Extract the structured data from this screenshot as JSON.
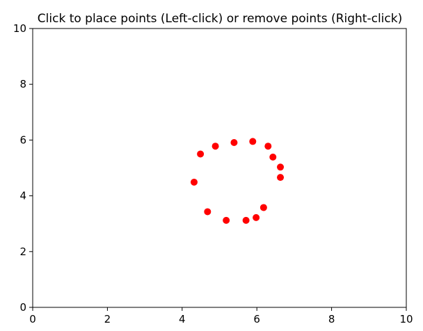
{
  "figure": {
    "title": "Click to place points (Left-click) or remove points (Right-click)"
  },
  "chart_data": {
    "type": "scatter",
    "title": "Click to place points (Left-click) or remove points (Right-click)",
    "xlabel": "",
    "ylabel": "",
    "xlim": [
      0,
      10
    ],
    "ylim": [
      0,
      10
    ],
    "xticks": [
      0,
      2,
      4,
      6,
      8,
      10
    ],
    "yticks": [
      0,
      2,
      4,
      6,
      8,
      10
    ],
    "grid": false,
    "marker_color": "#ff0000",
    "points": [
      {
        "x": 4.49,
        "y": 5.5
      },
      {
        "x": 4.89,
        "y": 5.78
      },
      {
        "x": 5.39,
        "y": 5.91
      },
      {
        "x": 5.89,
        "y": 5.95
      },
      {
        "x": 6.3,
        "y": 5.78
      },
      {
        "x": 6.43,
        "y": 5.39
      },
      {
        "x": 6.63,
        "y": 5.03
      },
      {
        "x": 6.63,
        "y": 4.66
      },
      {
        "x": 4.32,
        "y": 4.49
      },
      {
        "x": 6.18,
        "y": 3.58
      },
      {
        "x": 4.68,
        "y": 3.43
      },
      {
        "x": 5.98,
        "y": 3.22
      },
      {
        "x": 5.18,
        "y": 3.12
      },
      {
        "x": 5.71,
        "y": 3.12
      }
    ]
  }
}
